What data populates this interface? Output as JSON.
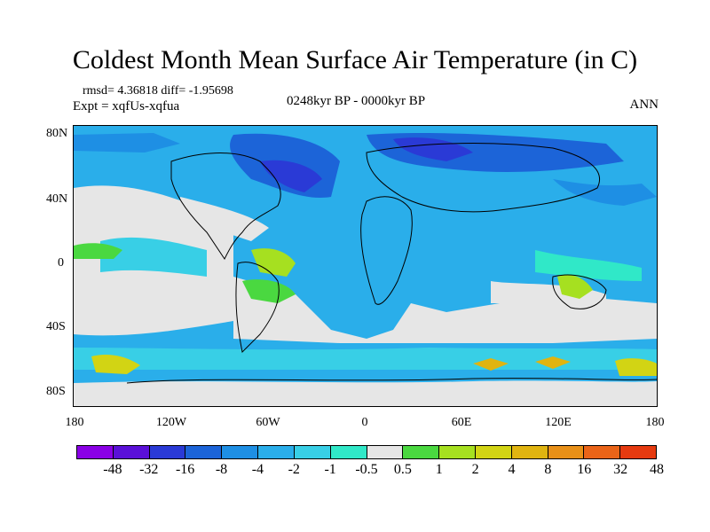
{
  "title": "Coldest Month Mean Surface Air Temperature (in C)",
  "stats": "rmsd= 4.36818 diff= -1.95698",
  "experiment": "Expt = xqfUs-xqfua",
  "period": "0248kyr BP - 0000kyr BP",
  "season": "ANN",
  "lat_labels": [
    "80N",
    "40N",
    "0",
    "40S",
    "80S"
  ],
  "lon_labels": [
    "180",
    "120W",
    "60W",
    "0",
    "60E",
    "120E",
    "180"
  ],
  "colorbar": {
    "colors": [
      "#8a00e6",
      "#5a10d8",
      "#2a3ad6",
      "#1c64d8",
      "#1e8fe4",
      "#2aaeea",
      "#38cfe6",
      "#30e8c8",
      "#e6e6e6",
      "#4ad840",
      "#a6e020",
      "#d2d414",
      "#e0b410",
      "#e89018",
      "#ea6418",
      "#e63a10"
    ],
    "labels": [
      "-48",
      "-32",
      "-16",
      "-8",
      "-4",
      "-2",
      "-1",
      "-0.5",
      "0.5",
      "1",
      "2",
      "4",
      "8",
      "16",
      "32",
      "48"
    ]
  }
}
